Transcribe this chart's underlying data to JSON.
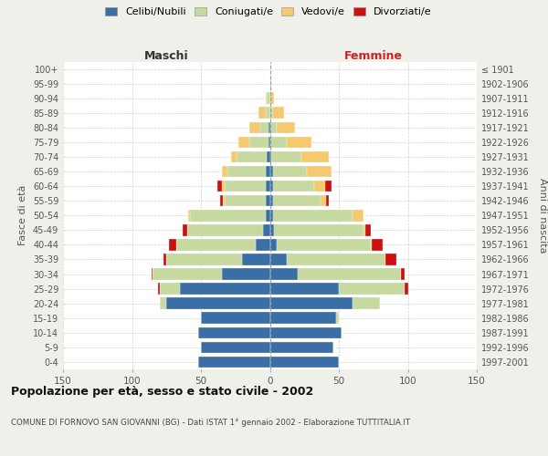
{
  "age_groups": [
    "0-4",
    "5-9",
    "10-14",
    "15-19",
    "20-24",
    "25-29",
    "30-34",
    "35-39",
    "40-44",
    "45-49",
    "50-54",
    "55-59",
    "60-64",
    "65-69",
    "70-74",
    "75-79",
    "80-84",
    "85-89",
    "90-94",
    "95-99",
    "100+"
  ],
  "birth_years": [
    "1997-2001",
    "1992-1996",
    "1987-1991",
    "1982-1986",
    "1977-1981",
    "1972-1976",
    "1967-1971",
    "1962-1966",
    "1957-1961",
    "1952-1956",
    "1947-1951",
    "1942-1946",
    "1937-1941",
    "1932-1936",
    "1927-1931",
    "1922-1926",
    "1917-1921",
    "1912-1916",
    "1907-1911",
    "1902-1906",
    "≤ 1901"
  ],
  "males_celibi": [
    52,
    50,
    52,
    50,
    75,
    65,
    35,
    20,
    10,
    5,
    3,
    3,
    3,
    3,
    2,
    1,
    1,
    0,
    0,
    0,
    0
  ],
  "males_coniugati": [
    0,
    0,
    0,
    0,
    5,
    15,
    50,
    55,
    58,
    55,
    55,
    30,
    30,
    28,
    22,
    14,
    6,
    3,
    2,
    0,
    0
  ],
  "males_vedovi": [
    0,
    0,
    0,
    0,
    0,
    0,
    0,
    0,
    0,
    0,
    1,
    1,
    2,
    4,
    4,
    8,
    8,
    5,
    1,
    0,
    0
  ],
  "males_divorziati": [
    0,
    0,
    0,
    0,
    0,
    1,
    1,
    2,
    5,
    3,
    0,
    2,
    3,
    0,
    0,
    0,
    0,
    0,
    0,
    0,
    0
  ],
  "fem_nubili": [
    50,
    46,
    52,
    48,
    60,
    50,
    20,
    12,
    5,
    3,
    2,
    2,
    2,
    2,
    1,
    0,
    0,
    0,
    0,
    0,
    0
  ],
  "fem_coniugate": [
    0,
    0,
    0,
    2,
    20,
    48,
    75,
    72,
    68,
    65,
    58,
    35,
    30,
    25,
    22,
    12,
    5,
    2,
    0,
    0,
    0
  ],
  "fem_vedove": [
    0,
    0,
    0,
    0,
    0,
    0,
    0,
    0,
    1,
    1,
    8,
    4,
    8,
    18,
    20,
    18,
    13,
    8,
    3,
    1,
    0
  ],
  "fem_divorziate": [
    0,
    0,
    0,
    0,
    0,
    2,
    3,
    8,
    8,
    4,
    0,
    2,
    5,
    0,
    0,
    0,
    0,
    0,
    0,
    0,
    0
  ],
  "color_celibi": "#3a6ea5",
  "color_coniugati": "#c5d9a0",
  "color_vedovi": "#f5c970",
  "color_divorziati": "#cc1111",
  "xlim": 150,
  "bg_color": "#f0f0eb",
  "plot_bg": "#ffffff",
  "grid_color": "#cccccc",
  "title": "Popolazione per età, sesso e stato civile - 2002",
  "subtitle": "COMUNE DI FORNOVO SAN GIOVANNI (BG) - Dati ISTAT 1° gennaio 2002 - Elaborazione TUTTITALIA.IT",
  "legend_labels": [
    "Celibi/Nubili",
    "Coniugati/e",
    "Vedovi/e",
    "Divorziati/e"
  ],
  "ylabel_left": "Fasce di età",
  "ylabel_right": "Anni di nascita",
  "header_maschi": "Maschi",
  "header_femmine": "Femmine"
}
